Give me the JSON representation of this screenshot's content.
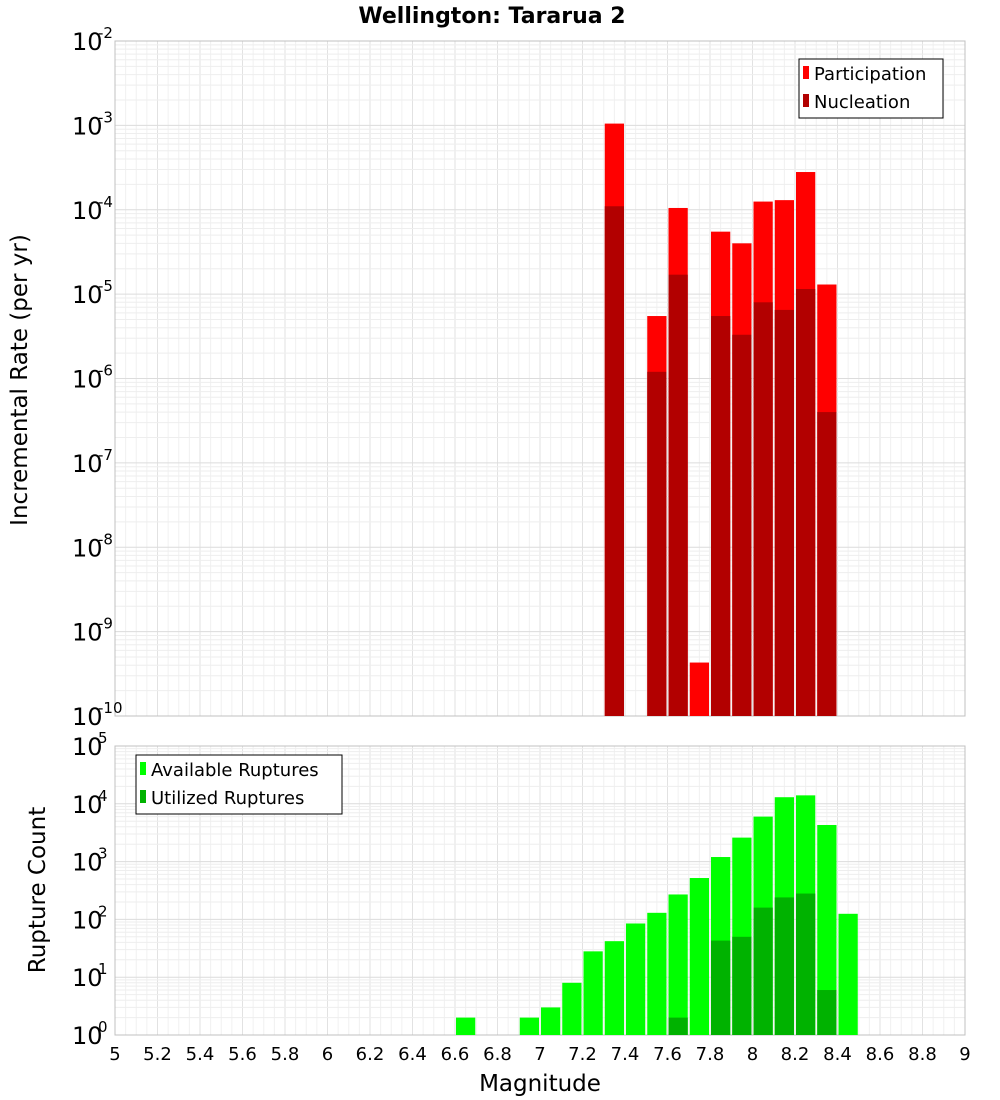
{
  "chart_data": [
    {
      "type": "bar",
      "title": "Wellington: Tararua 2",
      "ylabel": "Incremental Rate (per yr)",
      "xlabel": "",
      "xlim": [
        5,
        9
      ],
      "ylim": [
        1e-10,
        0.01
      ],
      "yscale": "log",
      "grid": true,
      "legend_position": "top-right",
      "bar_width": 0.1,
      "series": [
        {
          "name": "Participation",
          "color": "#ff0000",
          "x": [
            7.35,
            7.55,
            7.65,
            7.75,
            7.85,
            7.95,
            8.05,
            8.15,
            8.25,
            8.35
          ],
          "values": [
            0.00105,
            5.5e-06,
            0.000105,
            4.3e-10,
            5.5e-05,
            4e-05,
            0.000125,
            0.00013,
            0.00028,
            1.3e-05
          ]
        },
        {
          "name": "Nucleation",
          "color": "#b20000",
          "x": [
            7.35,
            7.55,
            7.65,
            7.85,
            7.95,
            8.05,
            8.15,
            8.25,
            8.35
          ],
          "values": [
            0.00011,
            1.2e-06,
            1.7e-05,
            5.5e-06,
            3.3e-06,
            8e-06,
            6.5e-06,
            1.15e-05,
            4e-07
          ]
        }
      ]
    },
    {
      "type": "bar",
      "title": "",
      "ylabel": "Rupture Count",
      "xlabel": "Magnitude",
      "xlim": [
        5,
        9
      ],
      "ylim": [
        1,
        100000
      ],
      "yscale": "log",
      "grid": true,
      "legend_position": "top-left",
      "bar_width": 0.1,
      "xticks": [
        "5",
        "5.2",
        "5.4",
        "5.6",
        "5.8",
        "6",
        "6.2",
        "6.4",
        "6.6",
        "6.8",
        "7",
        "7.2",
        "7.4",
        "7.6",
        "7.8",
        "8",
        "8.2",
        "8.4",
        "8.6",
        "8.8",
        "9"
      ],
      "series": [
        {
          "name": "Available Ruptures",
          "color": "#00ff00",
          "x": [
            6.65,
            6.75,
            6.85,
            6.95,
            7.05,
            7.15,
            7.25,
            7.35,
            7.45,
            7.55,
            7.65,
            7.75,
            7.85,
            7.95,
            8.05,
            8.15,
            8.25,
            8.35,
            8.45
          ],
          "values": [
            2,
            1,
            1,
            2,
            3,
            8,
            28,
            42,
            85,
            130,
            270,
            520,
            1200,
            2600,
            6000,
            13000,
            14000,
            4300,
            125
          ]
        },
        {
          "name": "Utilized Ruptures",
          "color": "#00b200",
          "x": [
            7.35,
            7.45,
            7.55,
            7.65,
            7.75,
            7.85,
            7.95,
            8.05,
            8.15,
            8.25,
            8.35
          ],
          "values": [
            1,
            1,
            1,
            2,
            1,
            43,
            50,
            160,
            240,
            280,
            6
          ]
        }
      ]
    }
  ]
}
